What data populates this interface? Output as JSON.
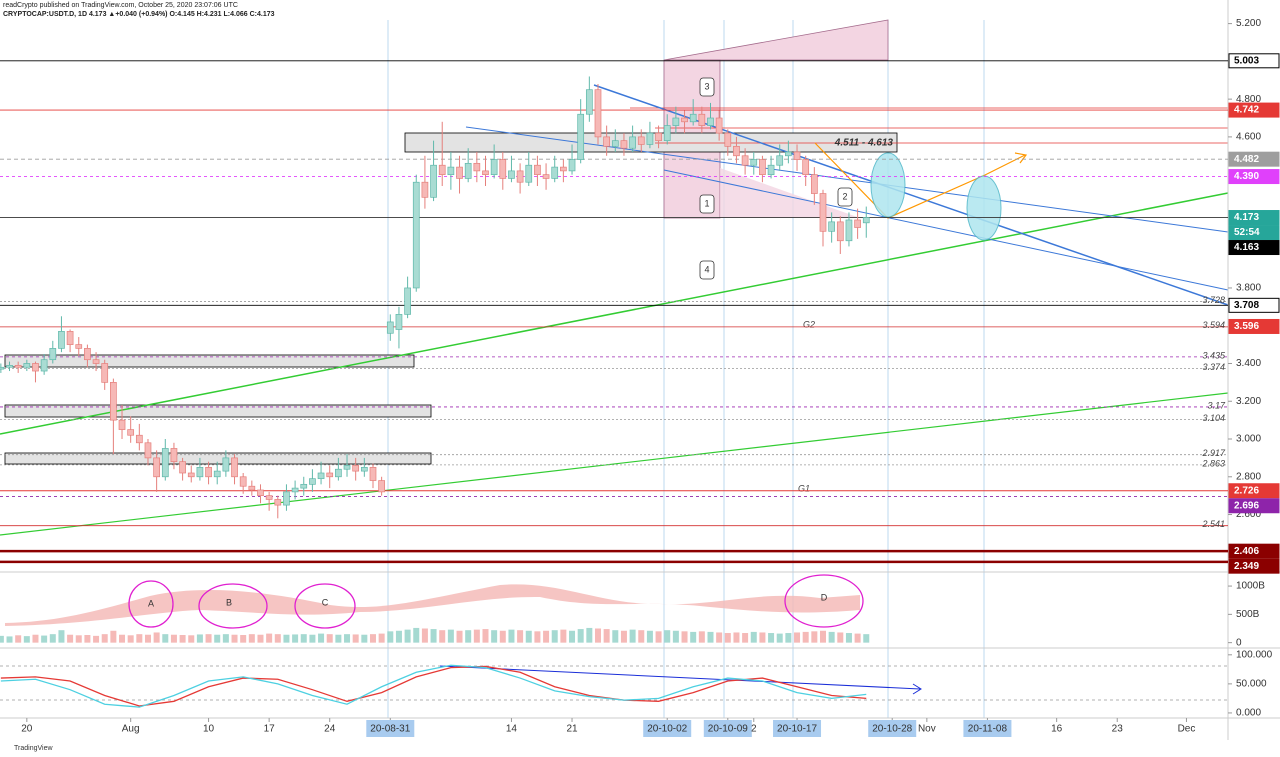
{
  "header": {
    "publisher": "readCrypto published on TradingView.com, October 25, 2020 23:07:06 UTC",
    "symbol": "CRYPTOCAP:USDT.D, 1D 4.173 ▲+0.040 (+0.94%) O:4.145 H:4.231 L:4.066 C:4.173"
  },
  "footer": "TradingView",
  "annotations": {
    "g1": "G1",
    "g2": "G2",
    "zone": "4.511 - 4.613",
    "callouts": [
      "1",
      "2",
      "3",
      "4"
    ],
    "cycles": [
      "A",
      "B",
      "C",
      "D"
    ]
  },
  "chart_data": [
    {
      "type": "candlestick",
      "up_color": "#a9dcd3",
      "up_border": "#5fb8aa",
      "down_color": "#f6b8b6",
      "down_border": "#e57f7b",
      "ohlc": [
        [
          3.37,
          3.4,
          3.35,
          3.38
        ],
        [
          3.38,
          3.41,
          3.36,
          3.39
        ],
        [
          3.39,
          3.41,
          3.35,
          3.38
        ],
        [
          3.38,
          3.42,
          3.36,
          3.4
        ],
        [
          3.4,
          3.41,
          3.3,
          3.36
        ],
        [
          3.36,
          3.45,
          3.34,
          3.42
        ],
        [
          3.42,
          3.52,
          3.4,
          3.48
        ],
        [
          3.48,
          3.65,
          3.46,
          3.57
        ],
        [
          3.57,
          3.58,
          3.46,
          3.5
        ],
        [
          3.5,
          3.54,
          3.44,
          3.48
        ],
        [
          3.48,
          3.5,
          3.38,
          3.42
        ],
        [
          3.42,
          3.46,
          3.36,
          3.4
        ],
        [
          3.4,
          3.42,
          3.26,
          3.3
        ],
        [
          3.3,
          3.32,
          2.92,
          3.1
        ],
        [
          3.1,
          3.18,
          3.0,
          3.05
        ],
        [
          3.05,
          3.12,
          2.98,
          3.02
        ],
        [
          3.02,
          3.08,
          2.94,
          2.98
        ],
        [
          2.98,
          3.0,
          2.86,
          2.9
        ],
        [
          2.9,
          2.94,
          2.72,
          2.8
        ],
        [
          2.8,
          3.0,
          2.78,
          2.95
        ],
        [
          2.95,
          2.98,
          2.84,
          2.88
        ],
        [
          2.88,
          2.9,
          2.78,
          2.82
        ],
        [
          2.82,
          2.86,
          2.77,
          2.8
        ],
        [
          2.8,
          2.9,
          2.78,
          2.85
        ],
        [
          2.85,
          2.88,
          2.76,
          2.8
        ],
        [
          2.8,
          2.88,
          2.76,
          2.83
        ],
        [
          2.83,
          2.94,
          2.8,
          2.9
        ],
        [
          2.9,
          2.92,
          2.76,
          2.8
        ],
        [
          2.8,
          2.82,
          2.71,
          2.75
        ],
        [
          2.75,
          2.78,
          2.7,
          2.73
        ],
        [
          2.73,
          2.76,
          2.66,
          2.7
        ],
        [
          2.7,
          2.72,
          2.62,
          2.68
        ],
        [
          2.68,
          2.7,
          2.58,
          2.65
        ],
        [
          2.65,
          2.76,
          2.62,
          2.72
        ],
        [
          2.72,
          2.78,
          2.68,
          2.74
        ],
        [
          2.74,
          2.8,
          2.7,
          2.76
        ],
        [
          2.76,
          2.84,
          2.72,
          2.79
        ],
        [
          2.79,
          2.88,
          2.76,
          2.82
        ],
        [
          2.82,
          2.86,
          2.74,
          2.8
        ],
        [
          2.8,
          2.9,
          2.78,
          2.84
        ],
        [
          2.84,
          2.92,
          2.8,
          2.86
        ],
        [
          2.86,
          2.9,
          2.78,
          2.83
        ],
        [
          2.83,
          2.9,
          2.8,
          2.85
        ],
        [
          2.85,
          2.87,
          2.74,
          2.78
        ],
        [
          2.78,
          2.8,
          2.7,
          2.72
        ],
        [
          3.56,
          3.66,
          3.52,
          3.62
        ],
        [
          3.58,
          3.7,
          3.48,
          3.66
        ],
        [
          3.66,
          3.86,
          3.64,
          3.8
        ],
        [
          3.8,
          4.4,
          3.78,
          4.36
        ],
        [
          4.36,
          4.5,
          4.22,
          4.28
        ],
        [
          4.28,
          4.58,
          4.26,
          4.45
        ],
        [
          4.45,
          4.68,
          4.34,
          4.4
        ],
        [
          4.4,
          4.52,
          4.32,
          4.44
        ],
        [
          4.44,
          4.5,
          4.3,
          4.38
        ],
        [
          4.38,
          4.54,
          4.36,
          4.46
        ],
        [
          4.46,
          4.52,
          4.36,
          4.42
        ],
        [
          4.42,
          4.5,
          4.34,
          4.4
        ],
        [
          4.4,
          4.56,
          4.38,
          4.48
        ],
        [
          4.48,
          4.52,
          4.32,
          4.38
        ],
        [
          4.38,
          4.5,
          4.36,
          4.42
        ],
        [
          4.42,
          4.46,
          4.3,
          4.36
        ],
        [
          4.36,
          4.52,
          4.34,
          4.45
        ],
        [
          4.45,
          4.5,
          4.34,
          4.4
        ],
        [
          4.4,
          4.46,
          4.32,
          4.38
        ],
        [
          4.38,
          4.5,
          4.36,
          4.44
        ],
        [
          4.44,
          4.48,
          4.36,
          4.42
        ],
        [
          4.42,
          4.56,
          4.4,
          4.48
        ],
        [
          4.48,
          4.8,
          4.46,
          4.72
        ],
        [
          4.72,
          4.92,
          4.68,
          4.85
        ],
        [
          4.85,
          4.88,
          4.56,
          4.6
        ],
        [
          4.6,
          4.66,
          4.5,
          4.55
        ],
        [
          4.55,
          4.64,
          4.52,
          4.58
        ],
        [
          4.58,
          4.62,
          4.5,
          4.54
        ],
        [
          4.54,
          4.66,
          4.52,
          4.6
        ],
        [
          4.6,
          4.64,
          4.52,
          4.56
        ],
        [
          4.56,
          4.68,
          4.54,
          4.62
        ],
        [
          4.62,
          4.66,
          4.54,
          4.58
        ],
        [
          4.58,
          4.72,
          4.56,
          4.66
        ],
        [
          4.66,
          4.76,
          4.62,
          4.7
        ],
        [
          4.7,
          4.74,
          4.62,
          4.68
        ],
        [
          4.68,
          4.8,
          4.66,
          4.72
        ],
        [
          4.72,
          4.76,
          4.62,
          4.66
        ],
        [
          4.66,
          4.78,
          4.64,
          4.7
        ],
        [
          4.7,
          4.74,
          4.58,
          4.62
        ],
        [
          4.62,
          4.64,
          4.5,
          4.55
        ],
        [
          4.55,
          4.6,
          4.46,
          4.5
        ],
        [
          4.5,
          4.54,
          4.4,
          4.45
        ],
        [
          4.45,
          4.52,
          4.4,
          4.48
        ],
        [
          4.48,
          4.5,
          4.36,
          4.4
        ],
        [
          4.4,
          4.5,
          4.38,
          4.45
        ],
        [
          4.45,
          4.56,
          4.42,
          4.5
        ],
        [
          4.5,
          4.58,
          4.46,
          4.52
        ],
        [
          4.52,
          4.56,
          4.42,
          4.48
        ],
        [
          4.48,
          4.5,
          4.34,
          4.4
        ],
        [
          4.4,
          4.44,
          4.24,
          4.3
        ],
        [
          4.3,
          4.32,
          4.02,
          4.1
        ],
        [
          4.1,
          4.2,
          4.04,
          4.15
        ],
        [
          4.15,
          4.18,
          3.98,
          4.05
        ],
        [
          4.05,
          4.2,
          4.02,
          4.16
        ],
        [
          4.16,
          4.22,
          4.06,
          4.12
        ],
        [
          4.145,
          4.231,
          4.066,
          4.173
        ]
      ],
      "xlim": [
        -0.1,
        141.8
      ],
      "ylim": [
        2.301,
        5.325
      ],
      "yticks": [
        {
          "value": 5.2,
          "label": "5.200"
        },
        {
          "value": 4.8,
          "label": "4.800"
        },
        {
          "value": 4.6,
          "label": "4.600"
        },
        {
          "value": 3.8,
          "label": "3.800"
        },
        {
          "value": 3.4,
          "label": "3.400"
        },
        {
          "value": 3.2,
          "label": "3.200"
        },
        {
          "value": 3.0,
          "label": "3.000"
        },
        {
          "value": 2.8,
          "label": "2.800"
        },
        {
          "value": 2.6,
          "label": "2.600"
        }
      ],
      "xticks": [
        {
          "value": 3,
          "label": "20"
        },
        {
          "value": 15,
          "label": "Aug"
        },
        {
          "value": 24,
          "label": "10"
        },
        {
          "value": 31,
          "label": "17"
        },
        {
          "value": 38,
          "label": "24"
        },
        {
          "value": 45,
          "label": "20-08-31",
          "boxed": true
        },
        {
          "value": 59,
          "label": "14"
        },
        {
          "value": 66,
          "label": "21"
        },
        {
          "value": 77,
          "label": "20-10-02",
          "boxed": true
        },
        {
          "value": 84,
          "label": "20-10-09",
          "boxed": true
        },
        {
          "value": 87,
          "label": "2"
        },
        {
          "value": 92,
          "label": "20-10-17",
          "boxed": true
        },
        {
          "value": 103,
          "label": "20-10-28",
          "boxed": true
        },
        {
          "value": 107,
          "label": "Nov"
        },
        {
          "value": 114,
          "label": "20-11-08",
          "boxed": true
        },
        {
          "value": 122,
          "label": "16"
        },
        {
          "value": 129,
          "label": "23"
        },
        {
          "value": 137,
          "label": "Dec"
        }
      ],
      "levels": [
        {
          "value": 3.728,
          "color": "#999",
          "dash": "2 2"
        },
        {
          "value": 3.594,
          "color": "#d32f2f"
        },
        {
          "value": 3.435,
          "color": "#9c27b0",
          "dash": "3 3"
        },
        {
          "value": 3.374,
          "color": "#999",
          "dash": "2 2"
        },
        {
          "value": 3.17,
          "color": "#9c27b0",
          "dash": "3 3"
        },
        {
          "value": 3.104,
          "color": "#999",
          "dash": "2 2"
        },
        {
          "value": 2.917,
          "color": "#999",
          "dash": "2 2"
        },
        {
          "value": 2.863,
          "color": "#999",
          "dash": "2 2"
        },
        {
          "value": 2.541,
          "color": "#d32f2f"
        }
      ],
      "badges": [
        {
          "value": 5.003,
          "bg": "#ffffff",
          "fg": "#000000",
          "line": "#000000"
        },
        {
          "value": 4.742,
          "bg": "#e53935",
          "fg": "#ffffff",
          "line": "#e53935"
        },
        {
          "value": 4.482,
          "bg": "#9e9e9e",
          "fg": "#ffffff",
          "line": "#9e9e9e",
          "dash": "4 3"
        },
        {
          "value": {
            "value": 4.39,
            "label": "4.390"
          },
          "bg": "#e040fb",
          "fg": "#ffffff",
          "line": "#e040fb",
          "dash": "3 3"
        },
        {
          "value": 4.173,
          "bg": "#26a69a",
          "fg": "#ffffff",
          "line": "#333333"
        },
        {
          "value": 4.163,
          "bg": "#000000",
          "fg": "#ffffff"
        },
        {
          "value": 3.708,
          "bg": "#ffffff",
          "fg": "#000000",
          "line": "#000000"
        },
        {
          "value": 3.596,
          "bg": "#e53935",
          "fg": "#ffffff"
        },
        {
          "value": 2.726,
          "bg": "#e53935",
          "fg": "#ffffff",
          "line": "#e53935"
        },
        {
          "value": 2.696,
          "bg": "#8e24aa",
          "fg": "#ffffff",
          "line": "#8e24aa",
          "dash": "3 3"
        },
        {
          "value": 2.406,
          "bg": "#8b0000",
          "fg": "#ffffff",
          "line": "#8b0000",
          "width": 2.5
        },
        {
          "value": 2.349,
          "bg": "#8b0000",
          "fg": "#ffffff",
          "line": "#8b0000",
          "width": 2.5
        }
      ],
      "countdown": "52:54"
    },
    {
      "type": "bar",
      "values": [
        120,
        110,
        130,
        115,
        140,
        125,
        150,
        220,
        140,
        130,
        135,
        120,
        150,
        210,
        140,
        130,
        150,
        140,
        180,
        150,
        140,
        135,
        130,
        145,
        150,
        140,
        150,
        140,
        135,
        150,
        140,
        160,
        150,
        140,
        145,
        150,
        140,
        160,
        150,
        140,
        150,
        145,
        140,
        150,
        160,
        200,
        210,
        230,
        260,
        250,
        240,
        220,
        230,
        210,
        220,
        230,
        240,
        220,
        210,
        230,
        220,
        210,
        200,
        210,
        220,
        230,
        210,
        240,
        260,
        250,
        240,
        220,
        210,
        230,
        220,
        210,
        200,
        220,
        210,
        200,
        190,
        200,
        190,
        180,
        170,
        180,
        170,
        190,
        180,
        170,
        160,
        170,
        180,
        190,
        200,
        210,
        190,
        180,
        170,
        160,
        150
      ],
      "ylim": [
        -77,
        1231
      ],
      "yticks": [
        0,
        {
          "value": 500,
          "label": "500B"
        },
        {
          "value": 1000,
          "label": "1000B"
        }
      ]
    },
    {
      "type": "line",
      "x": [
        0,
        4,
        8,
        12,
        16,
        20,
        24,
        28,
        32,
        36,
        40,
        44,
        48,
        52,
        56,
        60,
        64,
        68,
        72,
        76,
        80,
        84,
        88,
        92,
        96,
        100
      ],
      "series": [
        {
          "color": "#e53935",
          "values": [
            60,
            62,
            55,
            30,
            12,
            20,
            45,
            60,
            58,
            40,
            20,
            35,
            62,
            78,
            80,
            70,
            45,
            30,
            22,
            20,
            35,
            55,
            60,
            45,
            30,
            25
          ]
        },
        {
          "color": "#4dd0e1",
          "values": [
            55,
            58,
            40,
            15,
            10,
            30,
            55,
            62,
            50,
            30,
            15,
            45,
            70,
            82,
            78,
            60,
            38,
            28,
            22,
            25,
            45,
            60,
            55,
            35,
            25,
            32
          ]
        }
      ],
      "ylim": [
        -7,
        110
      ],
      "yticks": [
        {
          "value": 100,
          "label": "100.000"
        },
        {
          "value": 50,
          "label": "50.000"
        },
        {
          "value": 0,
          "label": "0.000"
        }
      ]
    }
  ]
}
